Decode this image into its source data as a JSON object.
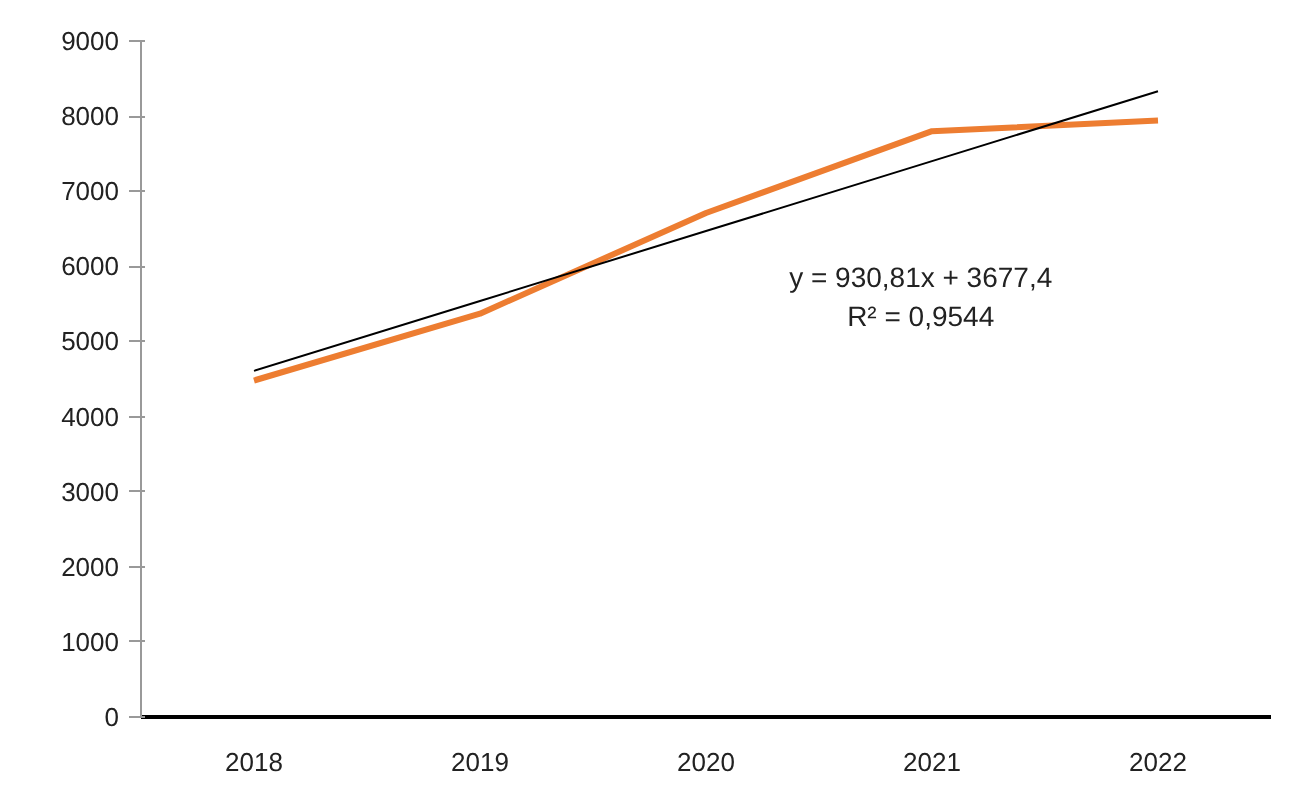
{
  "chart_data": {
    "type": "line",
    "categories": [
      "2018",
      "2019",
      "2020",
      "2021",
      "2022"
    ],
    "series": [
      {
        "color": "#ed7d31",
        "values": [
          4480,
          5370,
          6710,
          7800,
          7940
        ]
      },
      {
        "type": "line",
        "color": "#000000",
        "values": [
          4608,
          5539,
          6470,
          7401,
          8332
        ]
      }
    ],
    "ylim": [
      0,
      9000
    ],
    "yticks": [
      0,
      1000,
      2000,
      3000,
      4000,
      5000,
      6000,
      7000,
      8000,
      9000
    ],
    "annotations": [
      "y = 930,81x + 3677,4",
      "R² = 0,9544"
    ]
  }
}
